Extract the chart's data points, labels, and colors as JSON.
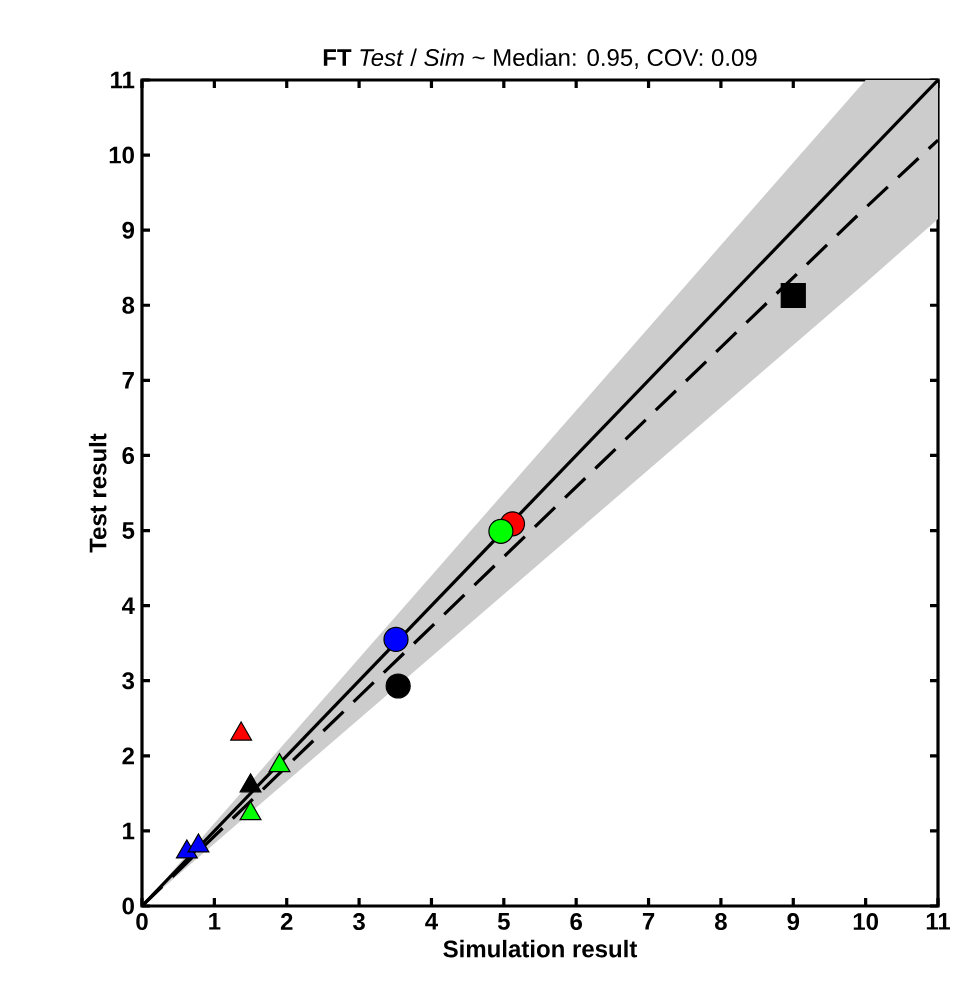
{
  "chart_data": {
    "type": "scatter",
    "title": "**FT**  *Test* / *Sim* ~ Median: 0.95, COV: 0.09",
    "xlabel": "Simulation result",
    "ylabel": "Test result",
    "xlim": [
      0,
      11
    ],
    "ylim": [
      0,
      11
    ],
    "xticks": [
      0,
      1,
      2,
      3,
      4,
      5,
      6,
      7,
      8,
      9,
      10,
      11
    ],
    "yticks": [
      0,
      1,
      2,
      3,
      4,
      5,
      6,
      7,
      8,
      9,
      10,
      11
    ],
    "series": [
      {
        "type": "line",
        "color": "#000000",
        "line_style": "dashed",
        "marker": "none",
        "x": [
          0,
          10,
          11
        ],
        "values": [
          0,
          9.3,
          10.2
        ],
        "lower": [
          0,
          8.3,
          9.15
        ],
        "upper": [
          0,
          11,
          11
        ]
      },
      {
        "type": "line",
        "color": "#000000",
        "line_style": "solid",
        "marker": "none",
        "x": [
          0,
          11
        ],
        "values": [
          0,
          11
        ]
      },
      {
        "color": "#ff0000",
        "marker": "circle",
        "x": [
          5.12
        ],
        "values": [
          5.09
        ]
      },
      {
        "color": "#00ff00",
        "marker": "circle",
        "x": [
          4.96
        ],
        "values": [
          4.99
        ]
      },
      {
        "color": "#0000ff",
        "marker": "circle",
        "x": [
          3.51
        ],
        "values": [
          3.55
        ]
      },
      {
        "color": "#000000",
        "marker": "circle",
        "x": [
          3.54
        ],
        "values": [
          2.93
        ]
      },
      {
        "color": "#000000",
        "marker": "square",
        "x": [
          9.0
        ],
        "values": [
          8.13
        ]
      },
      {
        "color": "#ff0000",
        "marker": "triangle",
        "x": [
          1.37
        ],
        "values": [
          2.29
        ]
      },
      {
        "color": "#00ff00",
        "marker": "triangle",
        "x": [
          1.9
        ],
        "values": [
          1.87
        ]
      },
      {
        "color": "#000000",
        "marker": "triangle",
        "x": [
          1.5
        ],
        "values": [
          1.6
        ]
      },
      {
        "color": "#00ff00",
        "marker": "triangle",
        "x": [
          1.5
        ],
        "values": [
          1.23
        ]
      },
      {
        "color": "#0000ff",
        "marker": "triangle",
        "x": [
          0.62,
          0.78
        ],
        "values": [
          0.72,
          0.8
        ]
      }
    ]
  }
}
